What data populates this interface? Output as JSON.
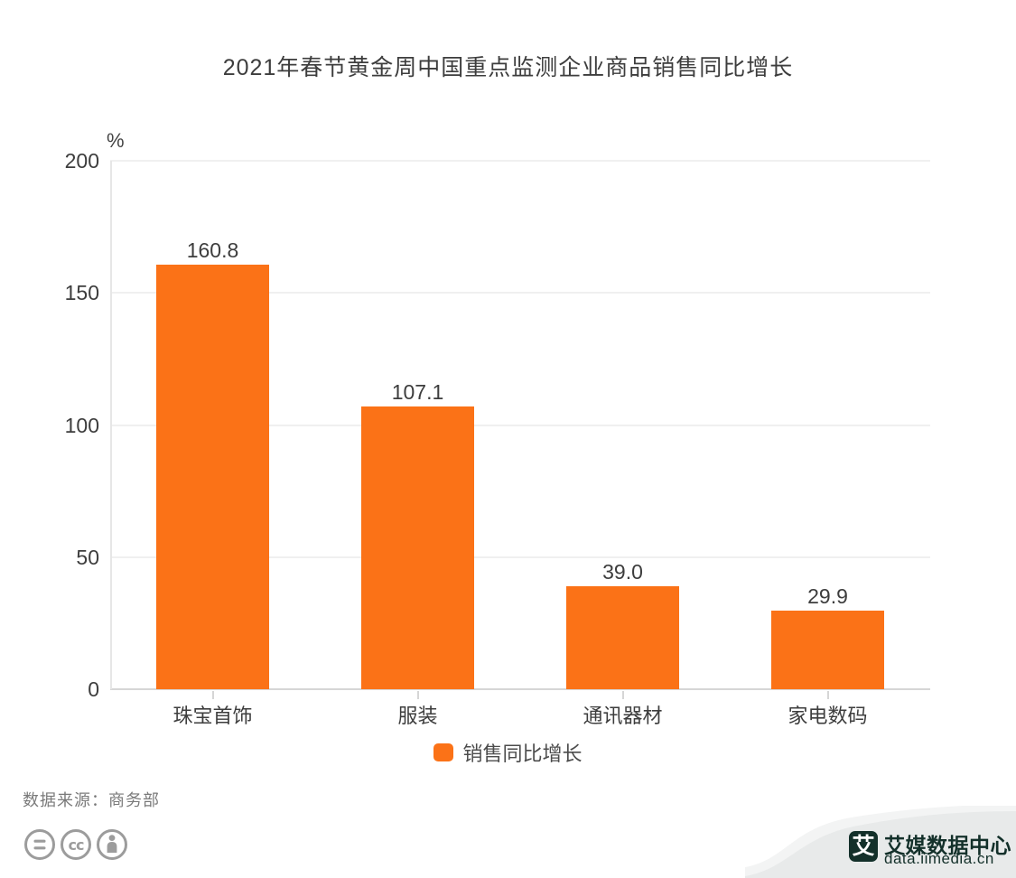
{
  "chart_data": {
    "type": "bar",
    "title": "2021年春节黄金周中国重点监测企业商品销售同比增长",
    "unit_label": "%",
    "categories": [
      "珠宝首饰",
      "服装",
      "通讯器材",
      "家电数码"
    ],
    "series": [
      {
        "name": "销售同比增长",
        "values": [
          160.8,
          107.1,
          39.0,
          29.9
        ],
        "color": "#fb7217"
      }
    ],
    "value_labels": [
      "160.8",
      "107.1",
      "39.0",
      "29.9"
    ],
    "ylim": [
      0,
      200
    ],
    "yticks": [
      0,
      50,
      100,
      150,
      200
    ],
    "grid": true,
    "legend_position": "bottom-center",
    "xlabel": "",
    "ylabel": ""
  },
  "legend": {
    "items": [
      {
        "label": "销售同比增长",
        "color": "#fb7217"
      }
    ]
  },
  "source_note": "数据来源：商务部",
  "cc_badges": {
    "icons": [
      "equals-icon",
      "cc-icon",
      "person-icon"
    ],
    "color": "#9c9c9c"
  },
  "watermark": {
    "logo_char": "艾",
    "brand": "艾媒数据中心",
    "domain": "data.iimedia.cn"
  },
  "colors": {
    "bar": "#fb7217",
    "title_text": "#3d3d3d",
    "axis_text": "#3d3d3d",
    "legend_text": "#4c4c4c",
    "source_text": "#7a7a7a",
    "gridline": "#f0f0f0",
    "axis_line": "#d6d6d6",
    "cc_icon": "#9c9c9c",
    "watermark_bg_front": "#e8eaea",
    "watermark_bg_back": "#f3f4f4",
    "watermark_fg": "#13302a"
  }
}
